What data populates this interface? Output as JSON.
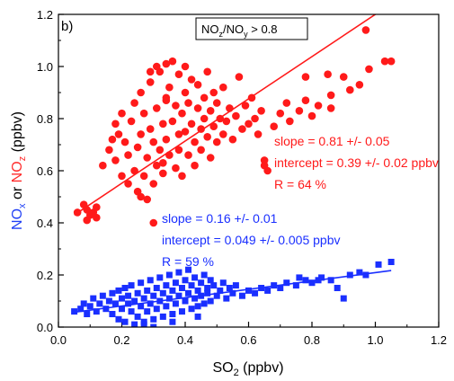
{
  "chart_data": {
    "type": "scatter",
    "panel_label": "b)",
    "condition_label": {
      "prefix": "NO",
      "sub1": "z",
      "mid": "/NO",
      "sub2": "y",
      "suffix": " > 0.8"
    },
    "xlabel": {
      "main": "SO",
      "sub": "2",
      "suffix": " (ppbv)"
    },
    "ylabel": {
      "p1": "NO",
      "p1_sub": "x",
      "p1_color": "#1f3ff5",
      "mid": " or ",
      "p2": "NO",
      "p2_sub": "z",
      "p2_color": "#ff2a2a",
      "suffix": " (ppbv)"
    },
    "xlim": [
      0.0,
      1.2
    ],
    "ylim": [
      0.0,
      1.2
    ],
    "xticks": [
      "0.0",
      "0.2",
      "0.4",
      "0.6",
      "0.8",
      "1.0",
      "1.2"
    ],
    "yticks": [
      "0.0",
      "0.2",
      "0.4",
      "0.6",
      "0.8",
      "1.0",
      "1.2"
    ],
    "series": [
      {
        "color": "#ff1a1a",
        "marker": "circle",
        "fit": {
          "slope": 0.81,
          "intercept": 0.39,
          "x_range": [
            0.05,
            1.05
          ]
        },
        "annotations": [
          "slope = 0.81 +/- 0.05",
          "intercept = 0.39 +/- 0.02 ppbv",
          "R = 64 %"
        ],
        "points": [
          [
            0.06,
            0.44
          ],
          [
            0.08,
            0.47
          ],
          [
            0.09,
            0.45
          ],
          [
            0.1,
            0.43
          ],
          [
            0.11,
            0.44
          ],
          [
            0.12,
            0.46
          ],
          [
            0.09,
            0.41
          ],
          [
            0.12,
            0.42
          ],
          [
            0.14,
            0.62
          ],
          [
            0.16,
            0.68
          ],
          [
            0.17,
            0.72
          ],
          [
            0.18,
            0.78
          ],
          [
            0.18,
            0.64
          ],
          [
            0.19,
            0.74
          ],
          [
            0.2,
            0.82
          ],
          [
            0.2,
            0.58
          ],
          [
            0.21,
            0.71
          ],
          [
            0.22,
            0.55
          ],
          [
            0.22,
            0.66
          ],
          [
            0.23,
            0.79
          ],
          [
            0.24,
            0.86
          ],
          [
            0.24,
            0.6
          ],
          [
            0.25,
            0.52
          ],
          [
            0.25,
            0.69
          ],
          [
            0.26,
            0.74
          ],
          [
            0.26,
            0.9
          ],
          [
            0.27,
            0.58
          ],
          [
            0.27,
            0.82
          ],
          [
            0.28,
            0.65
          ],
          [
            0.28,
            0.49
          ],
          [
            0.29,
            0.76
          ],
          [
            0.29,
            0.94
          ],
          [
            0.3,
            0.55
          ],
          [
            0.3,
            0.4
          ],
          [
            0.3,
            0.71
          ],
          [
            0.31,
            0.84
          ],
          [
            0.31,
            0.62
          ],
          [
            0.32,
            0.98
          ],
          [
            0.32,
            0.68
          ],
          [
            0.33,
            0.78
          ],
          [
            0.33,
            0.59
          ],
          [
            0.34,
            1.01
          ],
          [
            0.34,
            0.87
          ],
          [
            0.34,
            0.72
          ],
          [
            0.35,
            0.66
          ],
          [
            0.35,
            0.92
          ],
          [
            0.36,
            0.79
          ],
          [
            0.36,
            1.02
          ],
          [
            0.37,
            0.61
          ],
          [
            0.37,
            0.85
          ],
          [
            0.38,
            0.74
          ],
          [
            0.38,
            0.97
          ],
          [
            0.38,
            0.68
          ],
          [
            0.39,
            0.82
          ],
          [
            0.39,
            0.58
          ],
          [
            0.4,
            0.9
          ],
          [
            0.4,
            0.75
          ],
          [
            0.4,
            1.0
          ],
          [
            0.41,
            0.66
          ],
          [
            0.41,
            0.86
          ],
          [
            0.42,
            0.78
          ],
          [
            0.42,
            0.95
          ],
          [
            0.43,
            0.71
          ],
          [
            0.43,
            0.62
          ],
          [
            0.44,
            0.84
          ],
          [
            0.44,
            0.93
          ],
          [
            0.45,
            0.76
          ],
          [
            0.45,
            0.68
          ],
          [
            0.46,
            0.88
          ],
          [
            0.46,
            0.8
          ],
          [
            0.47,
            0.73
          ],
          [
            0.47,
            0.98
          ],
          [
            0.48,
            0.83
          ],
          [
            0.48,
            0.65
          ],
          [
            0.49,
            0.9
          ],
          [
            0.49,
            0.77
          ],
          [
            0.5,
            0.86
          ],
          [
            0.5,
            0.71
          ],
          [
            0.51,
            0.8
          ],
          [
            0.52,
            0.74
          ],
          [
            0.52,
            0.92
          ],
          [
            0.53,
            0.79
          ],
          [
            0.54,
            0.84
          ],
          [
            0.55,
            0.72
          ],
          [
            0.56,
            0.81
          ],
          [
            0.58,
            0.76
          ],
          [
            0.59,
            0.85
          ],
          [
            0.6,
            0.78
          ],
          [
            0.62,
            0.8
          ],
          [
            0.63,
            0.74
          ],
          [
            0.64,
            0.83
          ],
          [
            0.65,
            0.64
          ],
          [
            0.65,
            0.62
          ],
          [
            0.66,
            0.6
          ],
          [
            0.68,
            0.77
          ],
          [
            0.7,
            0.82
          ],
          [
            0.72,
            0.86
          ],
          [
            0.73,
            0.79
          ],
          [
            0.76,
            0.83
          ],
          [
            0.78,
            0.87
          ],
          [
            0.8,
            0.81
          ],
          [
            0.82,
            0.85
          ],
          [
            0.85,
            0.97
          ],
          [
            0.86,
            0.89
          ],
          [
            0.9,
            0.96
          ],
          [
            0.92,
            0.91
          ],
          [
            0.95,
            0.93
          ],
          [
            0.97,
            1.14
          ],
          [
            0.98,
            0.99
          ],
          [
            1.03,
            1.02
          ],
          [
            1.05,
            1.02
          ],
          [
            0.86,
            0.84
          ],
          [
            0.78,
            0.96
          ],
          [
            0.61,
            0.88
          ],
          [
            0.57,
            0.96
          ],
          [
            0.34,
            0.88
          ],
          [
            0.29,
            0.98
          ],
          [
            0.31,
            1.0
          ],
          [
            0.33,
            0.63
          ],
          [
            0.26,
            0.5
          ]
        ]
      },
      {
        "color": "#1a2fff",
        "marker": "square",
        "fit": {
          "slope": 0.16,
          "intercept": 0.049,
          "x_range": [
            0.05,
            1.05
          ]
        },
        "annotations": [
          "slope = 0.16 +/- 0.01",
          "intercept = 0.049 +/- 0.005 ppbv",
          "R = 59 %"
        ],
        "points": [
          [
            0.05,
            0.06
          ],
          [
            0.07,
            0.07
          ],
          [
            0.08,
            0.09
          ],
          [
            0.09,
            0.05
          ],
          [
            0.1,
            0.08
          ],
          [
            0.11,
            0.11
          ],
          [
            0.12,
            0.06
          ],
          [
            0.13,
            0.09
          ],
          [
            0.14,
            0.12
          ],
          [
            0.15,
            0.07
          ],
          [
            0.16,
            0.1
          ],
          [
            0.17,
            0.13
          ],
          [
            0.17,
            0.05
          ],
          [
            0.18,
            0.09
          ],
          [
            0.19,
            0.14
          ],
          [
            0.19,
            0.03
          ],
          [
            0.2,
            0.11
          ],
          [
            0.2,
            0.07
          ],
          [
            0.21,
            0.15
          ],
          [
            0.21,
            0.02
          ],
          [
            0.22,
            0.09
          ],
          [
            0.22,
            0.12
          ],
          [
            0.23,
            0.06
          ],
          [
            0.23,
            0.16
          ],
          [
            0.24,
            0.1
          ],
          [
            0.24,
            0.01
          ],
          [
            0.25,
            0.13
          ],
          [
            0.25,
            0.04
          ],
          [
            0.26,
            0.08
          ],
          [
            0.26,
            0.17
          ],
          [
            0.27,
            0.11
          ],
          [
            0.27,
            0.02
          ],
          [
            0.28,
            0.14
          ],
          [
            0.28,
            0.06
          ],
          [
            0.29,
            0.09
          ],
          [
            0.29,
            0.18
          ],
          [
            0.3,
            0.12
          ],
          [
            0.3,
            0.03
          ],
          [
            0.31,
            0.15
          ],
          [
            0.31,
            0.07
          ],
          [
            0.32,
            0.1
          ],
          [
            0.32,
            0.19
          ],
          [
            0.33,
            0.13
          ],
          [
            0.33,
            0.04
          ],
          [
            0.34,
            0.08
          ],
          [
            0.34,
            0.16
          ],
          [
            0.35,
            0.11
          ],
          [
            0.35,
            0.2
          ],
          [
            0.36,
            0.14
          ],
          [
            0.36,
            0.05
          ],
          [
            0.37,
            0.09
          ],
          [
            0.37,
            0.17
          ],
          [
            0.38,
            0.12
          ],
          [
            0.38,
            0.21
          ],
          [
            0.39,
            0.15
          ],
          [
            0.39,
            0.06
          ],
          [
            0.4,
            0.1
          ],
          [
            0.4,
            0.18
          ],
          [
            0.41,
            0.13
          ],
          [
            0.41,
            0.22
          ],
          [
            0.42,
            0.16
          ],
          [
            0.42,
            0.07
          ],
          [
            0.43,
            0.11
          ],
          [
            0.43,
            0.19
          ],
          [
            0.44,
            0.14
          ],
          [
            0.44,
            0.08
          ],
          [
            0.45,
            0.17
          ],
          [
            0.45,
            0.12
          ],
          [
            0.46,
            0.2
          ],
          [
            0.46,
            0.09
          ],
          [
            0.47,
            0.15
          ],
          [
            0.47,
            0.13
          ],
          [
            0.48,
            0.18
          ],
          [
            0.48,
            0.1
          ],
          [
            0.49,
            0.16
          ],
          [
            0.5,
            0.12
          ],
          [
            0.51,
            0.14
          ],
          [
            0.52,
            0.17
          ],
          [
            0.53,
            0.11
          ],
          [
            0.54,
            0.15
          ],
          [
            0.55,
            0.13
          ],
          [
            0.56,
            0.16
          ],
          [
            0.58,
            0.12
          ],
          [
            0.6,
            0.14
          ],
          [
            0.62,
            0.13
          ],
          [
            0.64,
            0.15
          ],
          [
            0.66,
            0.14
          ],
          [
            0.68,
            0.16
          ],
          [
            0.7,
            0.15
          ],
          [
            0.72,
            0.17
          ],
          [
            0.75,
            0.16
          ],
          [
            0.78,
            0.18
          ],
          [
            0.8,
            0.17
          ],
          [
            0.83,
            0.19
          ],
          [
            0.86,
            0.18
          ],
          [
            0.88,
            0.15
          ],
          [
            0.9,
            0.11
          ],
          [
            0.92,
            0.2
          ],
          [
            0.95,
            0.21
          ],
          [
            0.97,
            0.2
          ],
          [
            1.01,
            0.24
          ],
          [
            1.05,
            0.25
          ],
          [
            0.76,
            0.19
          ],
          [
            0.82,
            0.18
          ],
          [
            0.44,
            0.04
          ],
          [
            0.36,
            0.02
          ],
          [
            0.3,
            0.0
          ],
          [
            0.27,
            0.01
          ]
        ]
      }
    ]
  }
}
